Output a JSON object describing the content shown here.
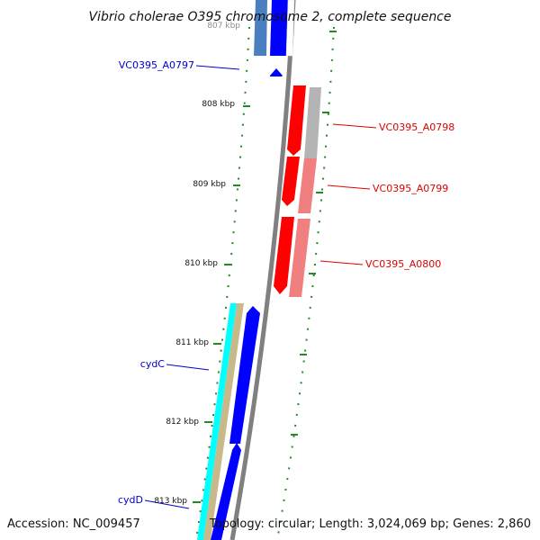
{
  "title": "Vibrio cholerae O395 chromosome 2, complete sequence",
  "footer": {
    "accession": "Accession: NC_009457",
    "summary": "Topology: circular; Length: 3,024,069 bp; Genes: 2,860"
  },
  "ticks": [
    "807 kbp",
    "808 kbp",
    "809 kbp",
    "810 kbp",
    "811 kbp",
    "812 kbp",
    "813 kbp"
  ],
  "genes": {
    "vc0395_a0797": "VC0395_A0797",
    "vc0395_a0798": "VC0395_A0798",
    "vc0395_a0799": "VC0395_A0799",
    "vc0395_a0800": "VC0395_A0800",
    "cydc": "cydC",
    "cydd": "cydD"
  },
  "colors": {
    "backbone": "#808080",
    "forward_cds": "#0000ff",
    "reverse_cds": "#ff0000",
    "reverse_cds_light": "#f08080",
    "gray_cds": "#b4b4b4",
    "cyan_cds": "#00ffff",
    "tan_cds": "#c8b98a",
    "tick_marks": "#228b22"
  }
}
